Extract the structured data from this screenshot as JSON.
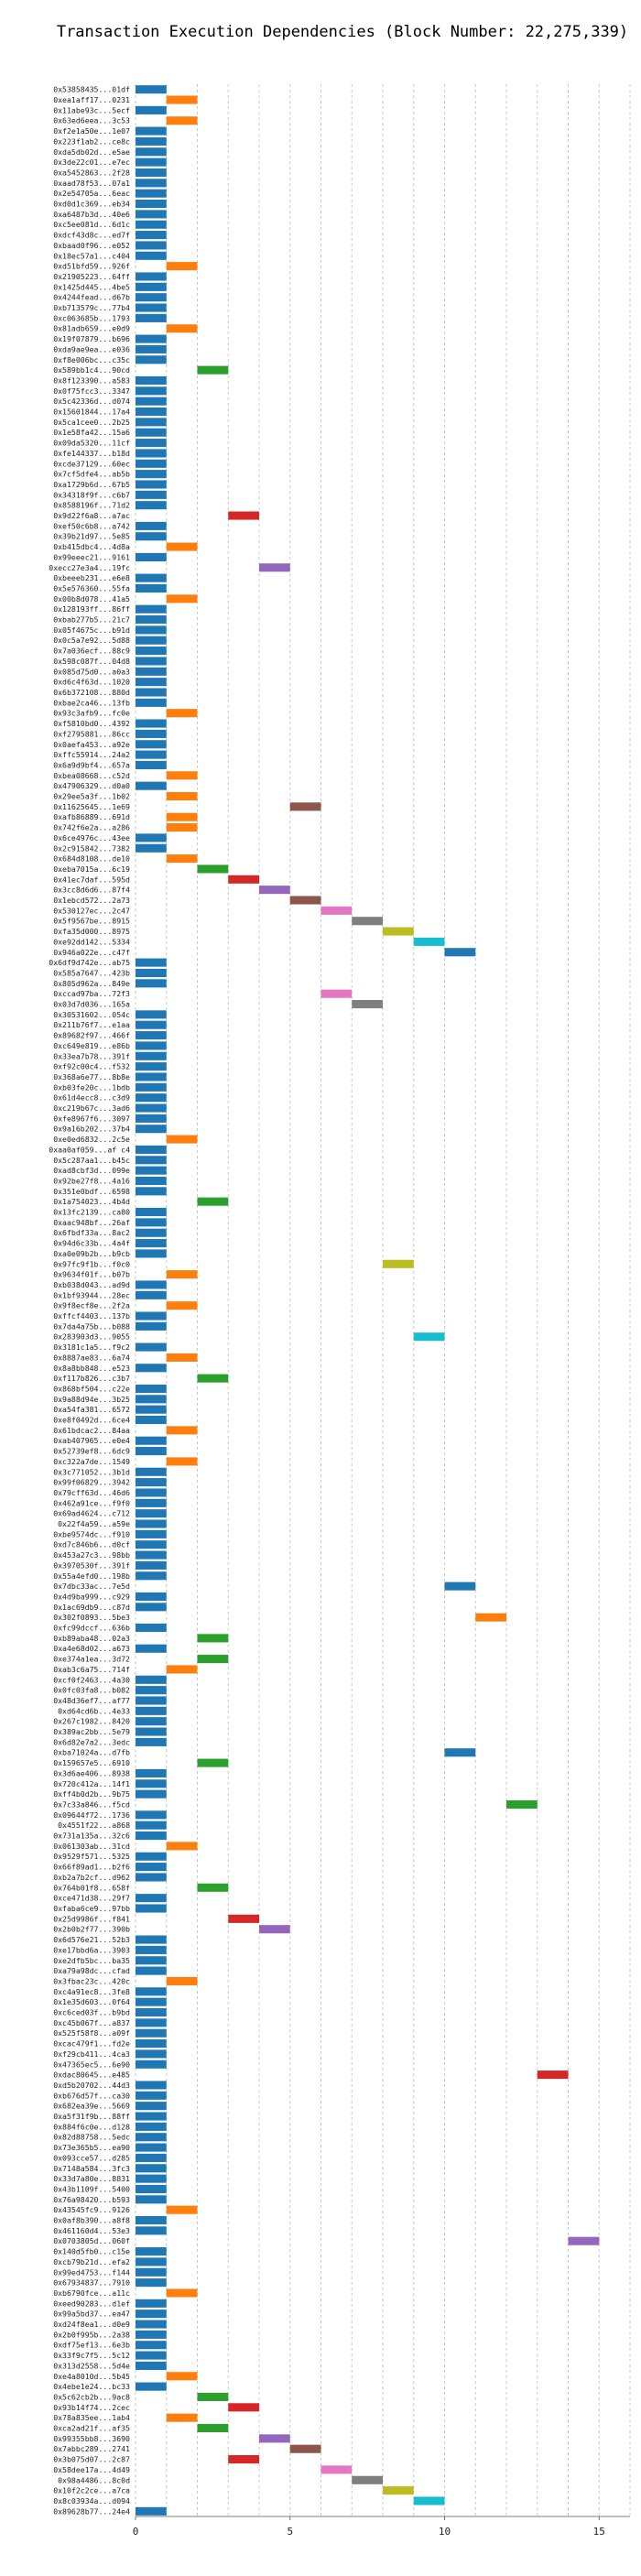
{
  "chart_data": {
    "type": "bar",
    "orientation": "horizontal",
    "title": "Transaction Execution Dependencies (Block Number: 22,275,339)",
    "xlabel": "",
    "ylabel": "",
    "xlim": [
      0,
      16
    ],
    "xticks": [
      0,
      5,
      10,
      15
    ],
    "grid": true,
    "palette": [
      "#1f77b4",
      "#ff7f0e",
      "#2ca02c",
      "#d62728",
      "#9467bd",
      "#8c564b",
      "#e377c2",
      "#7f7f7f",
      "#bcbd22",
      "#17becf"
    ],
    "categories": [
      "0x53858435...01df",
      "0xea1aff17...0231",
      "0x11abe93c...5ecf",
      "0x63ed6eea...3c53",
      "0xf2e1a50e...1e07",
      "0x223f1ab2...ce8c",
      "0xda5db02d...e5ae",
      "0x3de22c01...e7ec",
      "0xa5452863...2f28",
      "0xaad78f53...07a1",
      "0x2e54705a...6eac",
      "0xd0d1c369...eb34",
      "0xa6487b3d...40e6",
      "0xc5ee081d...6d1c",
      "0xdcf43d8c...ed7f",
      "0xbaad0f96...e052",
      "0x18ec57a1...c404",
      "0xd51bfd59...926f",
      "0x21905223...64ff",
      "0x1425d445...4be5",
      "0x4244fead...d67b",
      "0xb713579c...77b4",
      "0xc063685b...1793",
      "0x81adb659...e0d9",
      "0x19f07879...b696",
      "0xda9ae9ea...e036",
      "0xf8e006bc...c35c",
      "0x589bb1c4...90cd",
      "0x8f123390...a583",
      "0x0f75fcc3...3347",
      "0x5c42336d...d074",
      "0x15601844...17a4",
      "0x5ca1cee0...2b25",
      "0x1e58fa42...15a6",
      "0x09da5320...11cf",
      "0xfe144337...b18d",
      "0xcde37129...60ec",
      "0x7cf5dfe4...ab5b",
      "0xa1729b6d...67b5",
      "0x34318f9f...c6b7",
      "0x8588196f...71d2",
      "0x9d22f6a8...a7ac",
      "0xef50c6b8...a742",
      "0x39b21d97...5e85",
      "0xb415dbc4...4d8a",
      "0x99eeec21...9161",
      "0xecc27e3a4...19fc",
      "0xbeeeb231...e6e8",
      "0x5e576360...55fa",
      "0x00b8d078...41a5",
      "0x128193ff...86ff",
      "0xbab277b5...21c7",
      "0x05f4675c...b91d",
      "0x0c5a7e92...5d88",
      "0x7a036ecf...88c9",
      "0x598c087f...04d8",
      "0x085d75d0...a0a3",
      "0xd6c4f63d...1020",
      "0x6b372108...880d",
      "0xbae2ca46...13fb",
      "0x93c3afb9...fc0e",
      "0xf5810bd0...4392",
      "0xf2795881...86cc",
      "0x0aefa453...a92e",
      "0xffc55914...24a2",
      "0x6a9d9bf4...657a",
      "0xbea08668...c52d",
      "0x47906329...d0a0",
      "0x29ee5a3f...1b02",
      "0x11625645...1e69",
      "0xafb86889...691d",
      "0x742f6e2a...a286",
      "0x6ce4976c...43ee",
      "0x2c915842...7382",
      "0x684d8108...de10",
      "0xeba7015a...6c19",
      "0x41ec7daf...595d",
      "0x3cc8d6d6...87f4",
      "0x1ebcd572...2a73",
      "0x530127ec...2c47",
      "0x5f9567be...8915",
      "0xfa35d000...8975",
      "0xe92dd142...5334",
      "0x946a022e...c47f",
      "0x6df9d742e...ab75",
      "0x585a7647...423b",
      "0x805d962a...849e",
      "0xccad97ba...72f3",
      "0x03d7d036...165a",
      "0x30531602...054c",
      "0x211b76f7...e1aa",
      "0x89682f97...466f",
      "0xc649e819...e86b",
      "0x33ea7b78...391f",
      "0xf92c00c4...f532",
      "0x368a6e77...8b8e",
      "0xb03fe20c...1bdb",
      "0x61d4ecc8...c3d9",
      "0xc219b67c...3ad6",
      "0xfe8967f6...3097",
      "0x9a16b202...37b4",
      "0xe0ed6832...2c5e",
      "0xaa0af059...af c4",
      "0x5c287aa1...b45c",
      "0xad8cbf3d...099e",
      "0x92be27f8...4a16",
      "0x351e0bdf...6598",
      "0x1a754023...4b4d",
      "0x13fc2139...ca80",
      "0xaac948bf...26af",
      "0x6fbdf33a...8ac2",
      "0x94d6c33b...4a4f",
      "0xa0e09b2b...b9cb",
      "0x97fc9f1b...f0c0",
      "0x9634f01f...b07b",
      "0xb038d043...ad9d",
      "0x1bf93944...28ec",
      "0x9f8ecf8e...2f2a",
      "0xffcf4403...137b",
      "0x7da4a75b...b088",
      "0x283903d3...9055",
      "0x3181c1a5...f9c2",
      "0x8887ae83...6a74",
      "0x8a8bb848...e523",
      "0xf117b826...c3b7",
      "0x868bf504...c22e",
      "0x9a88d94e...3b25",
      "0xa54fa381...6572",
      "0xe8f0492d...6ce4",
      "0x61bdcac2...84aa",
      "0xab407965...e0e4",
      "0x52739ef8...6dc9",
      "0xc322a7de...1549",
      "0x3c771052...3b1d",
      "0x99f06829...3942",
      "0x79cff63d...46d6",
      "0x462a91ce...f9f0",
      "0x69ad4624...c712",
      "0x22f4a59...a59e",
      "0xbe9574dc...f910",
      "0xd7c846b6...d0cf",
      "0x453a27c3...98bb",
      "0x3970530f...391f",
      "0x55a4efd0...198b",
      "0x7dbc33ac...7e5d",
      "0x4d9ba999...c929",
      "0x1ac69db9...c87d",
      "0x302f0893...5be3",
      "0xfc99dccf...636b",
      "0xb89aba48...02a3",
      "0xa4e68d02...a673",
      "0xe374a1ea...3d72",
      "0xab3c6a75...714f",
      "0xcf0f2463...4a30",
      "0x0fc03fa8...b082",
      "0x48d36ef7...af77",
      "0xd64cd6b...4e33",
      "0x267c1982...8420",
      "0x389ac2bb...5e79",
      "0x6d82e7a2...3edc",
      "0xba71024a...d7fb",
      "0x159657e5...6910",
      "0x3d6ae406...8938",
      "0x720c412a...14f1",
      "0xff4b0d2b...9b75",
      "0x7c33a846...f5cd",
      "0x09644f72...1736",
      "0x4551f22...a868",
      "0x731a135a...32c6",
      "0x061303ab...31cd",
      "0x9529f571...5325",
      "0x66f89ad1...b2f6",
      "0xb2a7b2cf...d962",
      "0x764b01f8...658f",
      "0xce471d38...29f7",
      "0xfaba6ce9...97bb",
      "0x25d9986f...f841",
      "0x2b0b2f77...390b",
      "0x6d576e21...52b3",
      "0xe17bbd6a...3903",
      "0xe2dfb5bc...ba35",
      "0xa79a98dc...cfad",
      "0x3fbac23c...420c",
      "0xc4a91ec8...3fe8",
      "0x1e35d603...0f64",
      "0xc6ced03f...b9bd",
      "0xc45b067f...a837",
      "0x525f58f8...a09f",
      "0xcac479f1...fd2e",
      "0xf29cb411...4ca3",
      "0x47365ec5...6e90",
      "0xdac80645...e485",
      "0xd5b20702...44d3",
      "0xb676d57f...ca30",
      "0x682ea39e...5669",
      "0xa5f31f9b...88ff",
      "0x884f6c0e...d128",
      "0x82d88758...5edc",
      "0x73e365b5...ea90",
      "0x093cce57...d285",
      "0x7148a584...3fc3",
      "0x33d7a80e...8831",
      "0x43b1109f...5400",
      "0x76a98420...b593",
      "0x43545fc9...9126",
      "0x0af8b390...a8f8",
      "0x461160d4...53e3",
      "0x0703805d...060f",
      "0x140d5fb0...c15e",
      "0xcb79b21d...efa2",
      "0x99ed4753...f144",
      "0x67934837...7910",
      "0xb6790fce...a11c",
      "0xeed90283...d1ef",
      "0x99a5bd37...ea47",
      "0xd24f8ea1...d0e9",
      "0x2b0f995b...2a38",
      "0xdf75ef13...6e3b",
      "0x33f9c7f5...5c12",
      "0x313d2558...5d4e",
      "0xe4a8010d...5b45",
      "0x4ebe1e24...bc33",
      "0x5c62cb2b...9ac8",
      "0x93b14f74...2cec",
      "0x78a835ee...1ab4",
      "0xca2ad21f...af35",
      "0x99355bb8...3690",
      "0x7abbc289...2741",
      "0x3b075d07...2c87",
      "0x58dee17a...4d49",
      "0x98a4486...8c0d",
      "0x10f2c2ce...a7ca",
      "0x8c03934a...d094",
      "0x89628b77...24e4"
    ],
    "start": [
      0,
      1,
      0,
      1,
      0,
      0,
      0,
      0,
      0,
      0,
      0,
      0,
      0,
      0,
      0,
      0,
      0,
      1,
      0,
      0,
      0,
      0,
      0,
      1,
      0,
      0,
      0,
      2,
      0,
      0,
      0,
      0,
      0,
      0,
      0,
      0,
      0,
      0,
      0,
      0,
      0,
      3,
      0,
      0,
      1,
      0,
      4,
      0,
      0,
      1,
      0,
      0,
      0,
      0,
      0,
      0,
      0,
      0,
      0,
      0,
      1,
      0,
      0,
      0,
      0,
      0,
      1,
      0,
      1,
      5,
      1,
      1,
      0,
      0,
      1,
      2,
      3,
      4,
      5,
      6,
      7,
      8,
      9,
      10,
      0,
      0,
      0,
      6,
      7,
      0,
      0,
      0,
      0,
      0,
      0,
      0,
      0,
      0,
      0,
      0,
      0,
      1,
      0,
      0,
      0,
      0,
      0,
      2,
      0,
      0,
      0,
      0,
      0,
      8,
      1,
      0,
      0,
      1,
      0,
      0,
      9,
      0,
      1,
      0,
      2,
      0,
      0,
      0,
      0,
      1,
      0,
      0,
      1,
      0,
      0,
      0,
      0,
      0,
      0,
      0,
      0,
      0,
      0,
      0,
      10,
      0,
      0,
      11,
      0,
      2,
      0,
      2,
      1,
      0,
      0,
      0,
      0,
      0,
      0,
      0,
      10,
      2,
      0,
      0,
      0,
      12,
      0,
      0,
      0,
      1,
      0,
      0,
      0,
      2,
      0,
      0,
      3,
      4,
      0,
      0,
      0,
      0,
      1,
      0,
      0,
      0,
      0,
      0,
      0,
      0,
      0,
      13,
      0,
      0,
      0,
      0,
      0,
      0,
      0,
      0,
      0,
      0,
      0,
      0,
      1,
      0,
      0,
      14,
      0,
      0,
      0,
      0,
      1,
      0,
      0,
      0,
      0,
      0,
      0,
      0,
      1,
      0,
      2,
      3,
      1,
      2,
      4,
      5,
      3,
      6,
      7,
      8,
      9,
      0
    ],
    "series_names": [],
    "bar_width": 1,
    "color_rule": "color index = start value mod 10"
  }
}
